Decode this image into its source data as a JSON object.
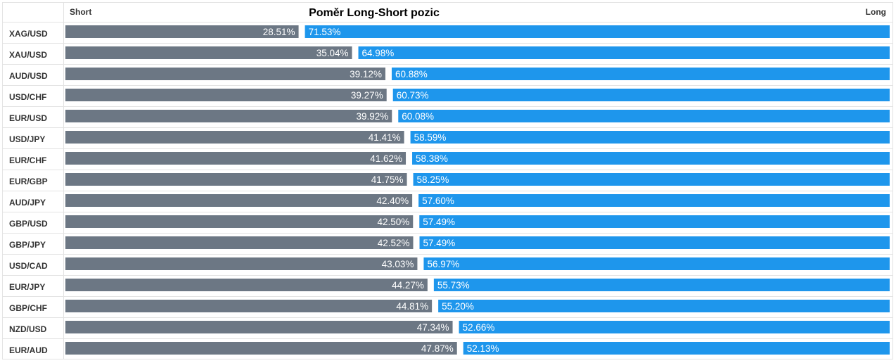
{
  "chart_data": {
    "type": "bar",
    "title": "Poměr Long-Short pozic",
    "stacked": true,
    "orientation": "horizontal",
    "grid": false,
    "legend": "none",
    "categories": [
      "XAG/USD",
      "XAU/USD",
      "AUD/USD",
      "USD/CHF",
      "EUR/USD",
      "USD/JPY",
      "EUR/CHF",
      "EUR/GBP",
      "AUD/JPY",
      "GBP/USD",
      "GBP/JPY",
      "USD/CAD",
      "EUR/JPY",
      "GBP/CHF",
      "NZD/USD",
      "EUR/AUD"
    ],
    "series": [
      {
        "name": "Short",
        "color": "#6c7784",
        "values": [
          28.51,
          35.04,
          39.12,
          39.27,
          39.92,
          41.41,
          41.62,
          41.75,
          42.4,
          42.5,
          42.52,
          43.03,
          44.27,
          44.81,
          47.34,
          47.87
        ],
        "labels": [
          "28.51%",
          "35.04%",
          "39.12%",
          "39.27%",
          "39.92%",
          "41.41%",
          "41.62%",
          "41.75%",
          "42.40%",
          "42.50%",
          "42.52%",
          "43.03%",
          "44.27%",
          "44.81%",
          "47.34%",
          "47.87%"
        ]
      },
      {
        "name": "Long",
        "color": "#1e96ec",
        "values": [
          71.53,
          64.98,
          60.88,
          60.73,
          60.08,
          58.59,
          58.38,
          58.25,
          57.6,
          57.49,
          57.49,
          56.97,
          55.73,
          55.2,
          52.66,
          52.13
        ],
        "labels": [
          "71.53%",
          "64.98%",
          "60.88%",
          "60.73%",
          "60.08%",
          "58.59%",
          "58.38%",
          "58.25%",
          "57.60%",
          "57.49%",
          "57.49%",
          "56.97%",
          "55.73%",
          "55.20%",
          "52.66%",
          "52.13%"
        ]
      }
    ],
    "xlim": [
      0,
      100
    ]
  }
}
